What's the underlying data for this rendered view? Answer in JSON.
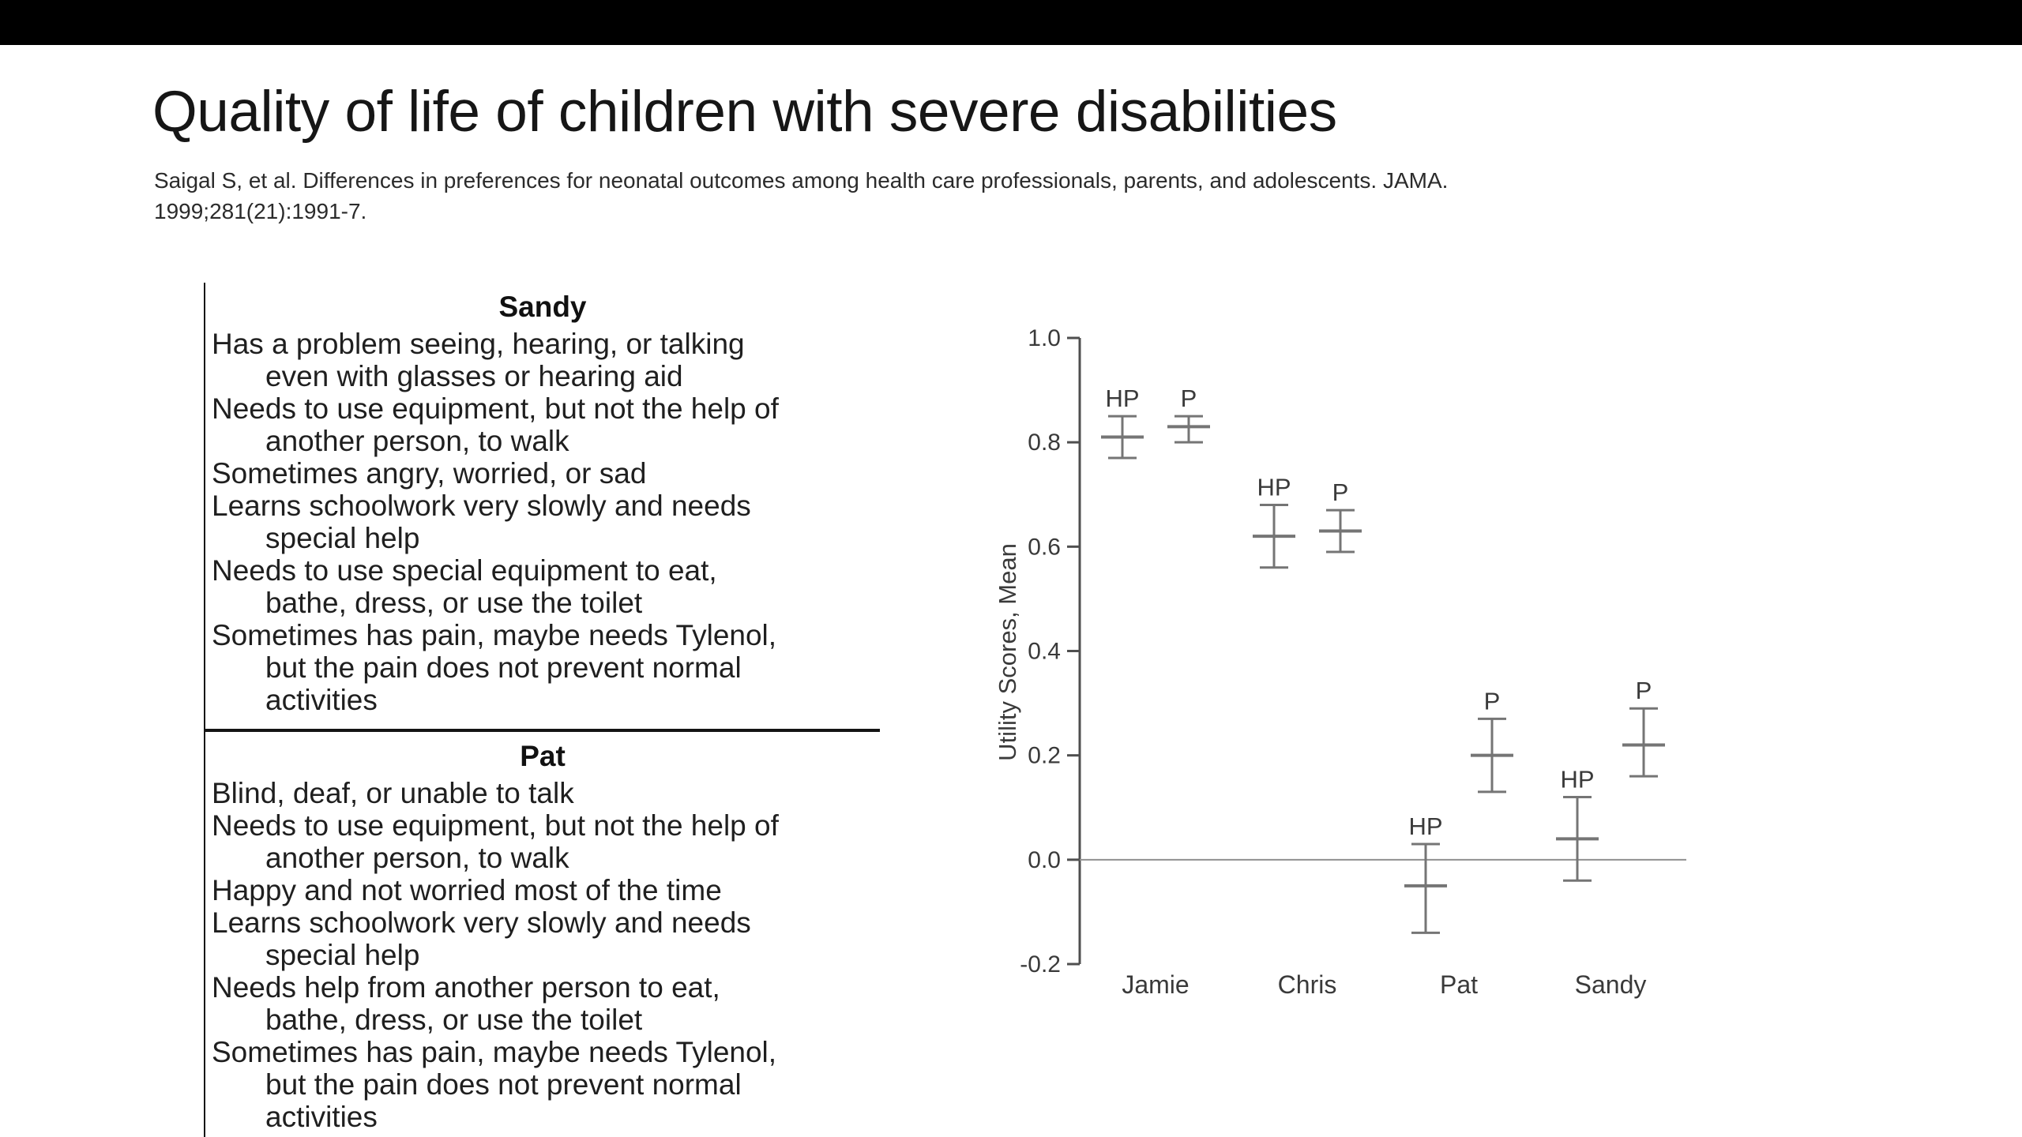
{
  "slide": {
    "title": "Quality of life of children with severe disabilities",
    "citation_lines": [
      "Saigal S, et al. Differences in preferences for neonatal outcomes among health care professionals, parents, and adolescents. JAMA.",
      "1999;281(21):1991-7."
    ]
  },
  "health_states_table": {
    "sections": [
      {
        "name": "Sandy",
        "items": [
          "Has a problem seeing, hearing, or talking even with glasses or hearing aid",
          "Needs to use equipment, but not the help of another person, to walk",
          "Sometimes angry, worried, or sad",
          "Learns schoolwork very slowly and needs special help",
          "Needs to use special equipment to eat, bathe, dress, or use the toilet",
          "Sometimes has pain, maybe needs Tylenol, but the pain does not prevent normal activities"
        ]
      },
      {
        "name": "Pat",
        "items": [
          "Blind, deaf, or unable to talk",
          "Needs to use equipment, but not the help of another person, to walk",
          "Happy and not worried most of the time",
          "Learns schoolwork very slowly and needs special help",
          "Needs help from another person to eat, bathe, dress, or use the toilet",
          "Sometimes has pain, maybe needs Tylenol, but the pain does not prevent normal activities"
        ]
      }
    ]
  },
  "chart_data": {
    "type": "errorbar",
    "title": "",
    "ylabel": "Utility Scores, Mean",
    "xlabel": "",
    "ylim": [
      -0.2,
      1.0
    ],
    "yticks": [
      "1.0",
      "0.8",
      "0.6",
      "0.4",
      "0.2",
      "0.0",
      "-0.2"
    ],
    "reference_line": 0.0,
    "grid": false,
    "legend_position": "none",
    "categories": [
      "Jamie",
      "Chris",
      "Pat",
      "Sandy"
    ],
    "series": [
      {
        "name": "HP",
        "means": [
          0.81,
          0.62,
          -0.05,
          0.04
        ],
        "ci_low": [
          0.77,
          0.56,
          -0.14,
          -0.04
        ],
        "ci_high": [
          0.85,
          0.68,
          0.03,
          0.12
        ]
      },
      {
        "name": "P",
        "means": [
          0.83,
          0.63,
          0.2,
          0.22
        ],
        "ci_low": [
          0.8,
          0.59,
          0.13,
          0.16
        ],
        "ci_high": [
          0.85,
          0.67,
          0.27,
          0.29
        ]
      }
    ],
    "point_label_style": "series name above each error bar",
    "colors": {
      "ink": "#4f4f4f",
      "bars": "#757575",
      "text": "#3a3a3a",
      "reference": "#909090"
    }
  }
}
